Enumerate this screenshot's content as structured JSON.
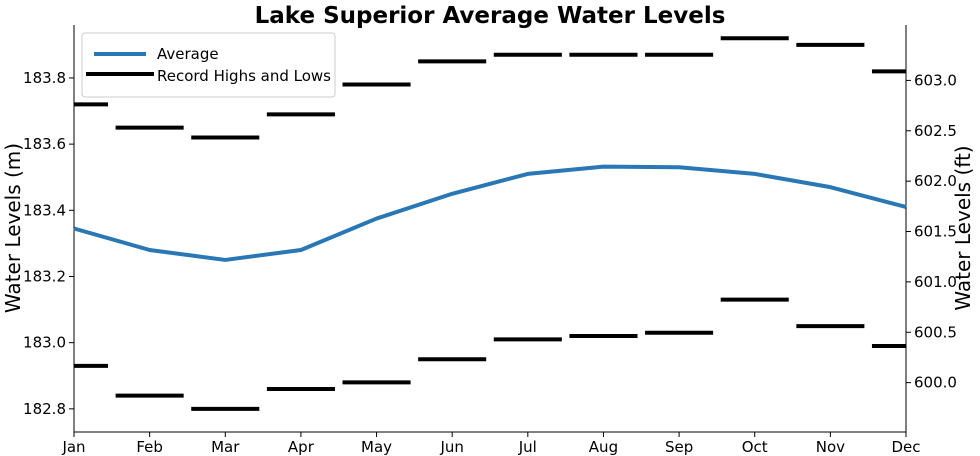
{
  "chart_data": {
    "type": "line",
    "title": "Lake Superior Average Water Levels",
    "ylabel": "Water Levels (m)",
    "y2label": "Water Levels (ft)",
    "categories": [
      "Jan",
      "Feb",
      "Mar",
      "Apr",
      "May",
      "Jun",
      "Jul",
      "Aug",
      "Sep",
      "Oct",
      "Nov",
      "Dec"
    ],
    "ylim": [
      182.73,
      183.96
    ],
    "y2lim": [
      599.51,
      603.55
    ],
    "yticks": [
      "182.8",
      "183.0",
      "183.2",
      "183.4",
      "183.6",
      "183.8"
    ],
    "y2ticks": [
      "600.0",
      "600.5",
      "601.0",
      "601.5",
      "602.0",
      "602.5",
      "603.0"
    ],
    "grid": false,
    "legend_position": "top-left",
    "series": [
      {
        "name": "Average",
        "style": "line",
        "color": "#2a77b5",
        "values": [
          183.345,
          183.28,
          183.25,
          183.28,
          183.375,
          183.45,
          183.51,
          183.532,
          183.53,
          183.51,
          183.47,
          183.41
        ]
      },
      {
        "name": "Record Highs and Lows",
        "style": "segments",
        "color": "#000000",
        "highs": [
          183.72,
          183.65,
          183.62,
          183.69,
          183.78,
          183.85,
          183.87,
          183.87,
          183.87,
          183.92,
          183.9,
          183.82
        ],
        "lows": [
          182.93,
          182.84,
          182.8,
          182.86,
          182.88,
          182.95,
          183.01,
          183.02,
          183.03,
          183.13,
          183.05,
          182.99
        ]
      }
    ]
  }
}
